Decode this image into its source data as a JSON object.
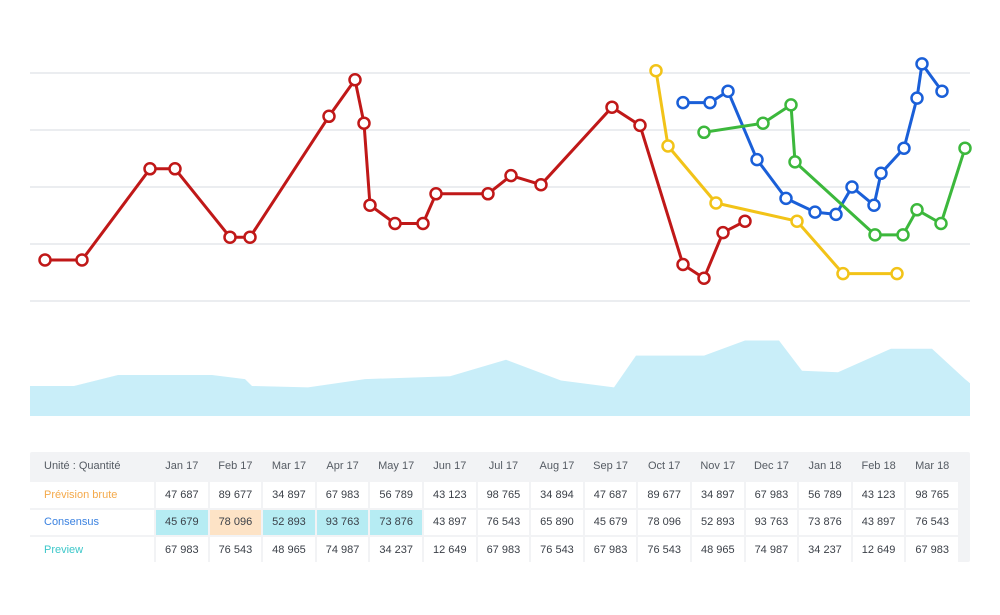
{
  "colors": {
    "grid": "#ebedf0",
    "area": "#c9eef9",
    "red": "#c01818",
    "yellow": "#f2c318",
    "blue": "#1a5fd8",
    "green": "#3cb83c",
    "lightblue": "#1e9be6",
    "lime": "#bfe03a",
    "prevision_label": "#f4a94a",
    "consensus_label": "#3b82e0",
    "preview_label": "#3cc7c9",
    "highlight_cyan": "#b6ecf3",
    "highlight_peach": "#fde3c6"
  },
  "chart_data": {
    "type": "line",
    "ylim": [
      0,
      100
    ],
    "grid": true,
    "series": [
      {
        "color_key": "red",
        "points": [
          [
            45,
            18
          ],
          [
            82,
            18
          ],
          [
            150,
            58
          ],
          [
            175,
            58
          ],
          [
            230,
            28
          ],
          [
            250,
            28
          ],
          [
            329,
            81
          ],
          [
            355,
            97
          ],
          [
            364,
            78
          ],
          [
            370,
            42
          ],
          [
            395,
            34
          ],
          [
            423,
            34
          ],
          [
            436,
            47
          ],
          [
            488,
            47
          ],
          [
            511,
            55
          ],
          [
            541,
            51
          ],
          [
            612,
            85
          ],
          [
            640,
            77
          ],
          [
            683,
            16
          ],
          [
            704,
            10
          ],
          [
            723,
            30
          ],
          [
            745,
            35
          ]
        ]
      },
      {
        "color_key": "yellow",
        "points": [
          [
            656,
            101
          ],
          [
            668,
            68
          ],
          [
            716,
            43
          ],
          [
            797,
            35
          ],
          [
            843,
            12
          ],
          [
            897,
            12
          ]
        ]
      },
      {
        "color_key": "blue",
        "points": [
          [
            683,
            87
          ],
          [
            710,
            87
          ],
          [
            728,
            92
          ],
          [
            757,
            62
          ],
          [
            786,
            45
          ],
          [
            815,
            39
          ],
          [
            836,
            38
          ],
          [
            852,
            50
          ],
          [
            874,
            42
          ],
          [
            881,
            56
          ],
          [
            904,
            67
          ],
          [
            917,
            89
          ],
          [
            922,
            104
          ],
          [
            942,
            92
          ]
        ]
      },
      {
        "color_key": "green",
        "points": [
          [
            704,
            74
          ],
          [
            763,
            78
          ],
          [
            791,
            86
          ],
          [
            795,
            61
          ],
          [
            875,
            29
          ],
          [
            903,
            29
          ],
          [
            917,
            40
          ],
          [
            941,
            34
          ],
          [
            965,
            67
          ]
        ]
      }
    ],
    "area": {
      "color_key": "area",
      "points": [
        [
          30,
          0
        ],
        [
          74,
          0
        ],
        [
          118,
          8
        ],
        [
          212,
          8
        ],
        [
          245,
          5
        ],
        [
          252,
          0
        ],
        [
          308,
          -1
        ],
        [
          365,
          5
        ],
        [
          450,
          7
        ],
        [
          506,
          19
        ],
        [
          561,
          4
        ],
        [
          614,
          -1
        ],
        [
          636,
          22
        ],
        [
          704,
          22
        ],
        [
          745,
          33
        ],
        [
          779,
          33
        ],
        [
          802,
          11
        ],
        [
          838,
          10
        ],
        [
          891,
          27
        ],
        [
          932,
          27
        ],
        [
          965,
          5
        ],
        [
          970,
          2
        ]
      ]
    },
    "table": {
      "header_label": "Unité : Quantité",
      "columns": [
        "Jan 17",
        "Feb 17",
        "Mar 17",
        "Apr 17",
        "May 17",
        "Jun 17",
        "Jul 17",
        "Aug 17",
        "Sep 17",
        "Oct 17",
        "Nov 17",
        "Dec 17",
        "Jan 18",
        "Feb 18",
        "Mar 18"
      ],
      "rows": [
        {
          "label": "Prévision brute",
          "label_color_key": "prevision_label",
          "values": [
            "47 687",
            "89 677",
            "34 897",
            "67 983",
            "56 789",
            "43 123",
            "98 765",
            "34 894",
            "47 687",
            "89 677",
            "34 897",
            "67 983",
            "56 789",
            "43 123",
            "98 765"
          ],
          "highlights": [
            null,
            null,
            null,
            null,
            null,
            null,
            null,
            null,
            null,
            null,
            null,
            null,
            null,
            null,
            null
          ]
        },
        {
          "label": "Consensus",
          "label_color_key": "consensus_label",
          "values": [
            "45 679",
            "78 096",
            "52 893",
            "93 763",
            "73 876",
            "43 897",
            "76 543",
            "65 890",
            "45 679",
            "78 096",
            "52 893",
            "93 763",
            "73 876",
            "43 897",
            "76 543"
          ],
          "highlights": [
            "highlight_cyan",
            "highlight_peach",
            "highlight_cyan",
            "highlight_cyan",
            "highlight_cyan",
            null,
            null,
            null,
            null,
            null,
            null,
            null,
            null,
            null,
            null
          ]
        },
        {
          "label": "Preview",
          "label_color_key": "preview_label",
          "values": [
            "67 983",
            "76 543",
            "48 965",
            "74 987",
            "34 237",
            "12 649",
            "67 983",
            "76 543",
            "67 983",
            "76 543",
            "48 965",
            "74 987",
            "34 237",
            "12 649",
            "67 983"
          ],
          "highlights": [
            null,
            null,
            null,
            null,
            null,
            null,
            null,
            null,
            null,
            null,
            null,
            null,
            null,
            null,
            null
          ]
        }
      ]
    }
  }
}
